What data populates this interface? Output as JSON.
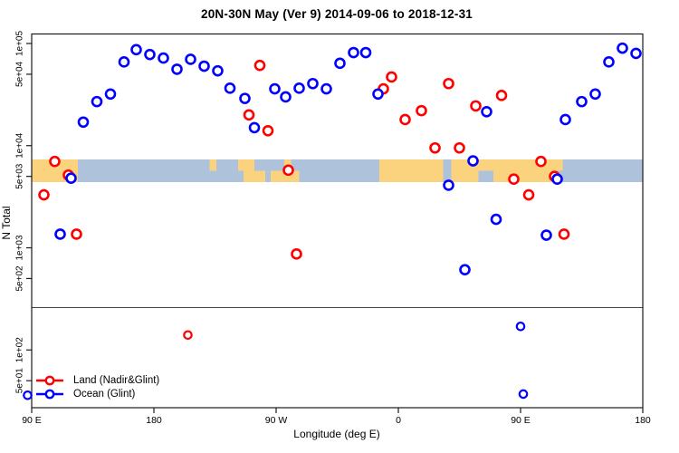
{
  "title": "20N-30N May (Ver 9)   2014-09-06 to 2018-12-31",
  "legend": {
    "items": [
      {
        "label": "Land (Nadir&Glint)",
        "color": "#FF0000"
      },
      {
        "label": "Ocean (Glint)",
        "color": "#0000FF"
      }
    ]
  },
  "chart_data": {
    "type": "scatter",
    "title": "20N-30N May (Ver 9)   2014-09-06 to 2018-12-31",
    "xlabel": "Longitude (deg E)",
    "ylabel": "N Total",
    "x_axis": {
      "note": "longitude axis wraps: spans 450 deg starting at 90E",
      "min": 90,
      "max": 540,
      "ticks": [
        {
          "value": 90,
          "label": "90 E"
        },
        {
          "value": 180,
          "label": "180"
        },
        {
          "value": 270,
          "label": "90 W"
        },
        {
          "value": 360,
          "label": "0"
        },
        {
          "value": 450,
          "label": "90 E"
        },
        {
          "value": 540,
          "label": "180"
        }
      ]
    },
    "y_axis": {
      "scale": "log10",
      "ticks": [
        {
          "value": 100000,
          "label": "1e+05"
        },
        {
          "value": 50000,
          "label": "5e+04"
        },
        {
          "value": 10000,
          "label": "1e+04"
        },
        {
          "value": 5000,
          "label": "5e+03"
        },
        {
          "value": 1000,
          "label": "1e+03"
        },
        {
          "value": 500,
          "label": "5e+02"
        },
        {
          "value": 100,
          "label": "1e+02"
        },
        {
          "value": 50,
          "label": "5e+01"
        }
      ]
    },
    "separator_line_value": 260,
    "series": [
      {
        "name": "Land (Nadir&Glint)",
        "color": "#FF0000",
        "points": [
          [
            99,
            3300
          ],
          [
            107,
            7000
          ],
          [
            117,
            5150
          ],
          [
            123,
            1360
          ],
          [
            250,
            20000
          ],
          [
            258,
            61000
          ],
          [
            264,
            14000
          ],
          [
            279,
            5750
          ],
          [
            285,
            870
          ],
          [
            349,
            36000
          ],
          [
            355,
            47000
          ],
          [
            365,
            18000
          ],
          [
            377,
            22000
          ],
          [
            387,
            9500
          ],
          [
            397,
            40500
          ],
          [
            405,
            9500
          ],
          [
            417,
            24500
          ],
          [
            436,
            31000
          ],
          [
            445,
            4700
          ],
          [
            456,
            3300
          ],
          [
            465,
            7000
          ],
          [
            475,
            5000
          ],
          [
            482,
            1360
          ],
          [
            205,
            140
          ]
        ]
      },
      {
        "name": "Ocean (Glint)",
        "color": "#0000FF",
        "points": [
          [
            111,
            1360
          ],
          [
            119,
            4800
          ],
          [
            128,
            17000
          ],
          [
            138,
            27000
          ],
          [
            148,
            32000
          ],
          [
            158,
            66000
          ],
          [
            167,
            87000
          ],
          [
            177,
            78000
          ],
          [
            187,
            72000
          ],
          [
            197,
            56000
          ],
          [
            207,
            70000
          ],
          [
            217,
            60000
          ],
          [
            227,
            54000
          ],
          [
            236,
            36500
          ],
          [
            247,
            29000
          ],
          [
            254,
            15000
          ],
          [
            269,
            36000
          ],
          [
            277,
            30000
          ],
          [
            287,
            36500
          ],
          [
            297,
            40500
          ],
          [
            307,
            36000
          ],
          [
            317,
            64000
          ],
          [
            327,
            81500
          ],
          [
            336,
            81500
          ],
          [
            345,
            32000
          ],
          [
            397,
            4100
          ],
          [
            409,
            610
          ],
          [
            415,
            7100
          ],
          [
            425,
            21500
          ],
          [
            432,
            1900
          ],
          [
            469,
            1330
          ],
          [
            477,
            4700
          ],
          [
            483,
            18000
          ],
          [
            495,
            27000
          ],
          [
            505,
            32000
          ],
          [
            515,
            66000
          ],
          [
            525,
            90000
          ],
          [
            535,
            80000
          ],
          [
            450,
            170
          ],
          [
            452,
            37
          ],
          [
            87,
            36
          ]
        ]
      }
    ],
    "map_band": {
      "description": "20N-30N world strip drawn across plot",
      "ocean_color": "#AEC2DC",
      "land_color": "#FBD27E",
      "land_segments": [
        {
          "from": 90,
          "to": 124,
          "part": "full"
        },
        {
          "from": 221,
          "to": 226,
          "part": "top"
        },
        {
          "from": 242,
          "to": 254,
          "part": "top"
        },
        {
          "from": 246,
          "to": 262,
          "part": "bottom"
        },
        {
          "from": 266,
          "to": 287,
          "part": "bottom"
        },
        {
          "from": 276,
          "to": 281,
          "part": "full"
        },
        {
          "from": 346,
          "to": 393,
          "part": "full"
        },
        {
          "from": 399,
          "to": 419,
          "part": "full"
        },
        {
          "from": 419,
          "to": 430,
          "part": "top"
        },
        {
          "from": 430,
          "to": 465,
          "part": "full"
        },
        {
          "from": 465,
          "to": 473,
          "part": "full"
        },
        {
          "from": 473,
          "to": 481,
          "part": "top"
        }
      ]
    }
  }
}
